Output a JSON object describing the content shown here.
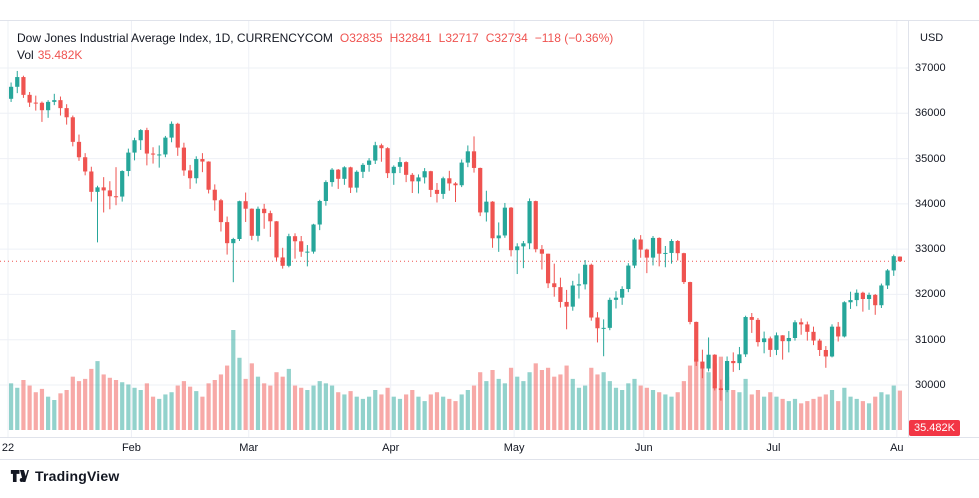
{
  "legend": {
    "title": "Dow Jones Industrial Average Index, 1D, CURRENCYCOM",
    "open": "O32835",
    "high": "H32841",
    "low": "L32717",
    "close": "C32734",
    "change": "−118 (−0.36%)"
  },
  "volume_row": {
    "label": "Vol",
    "value": "35.482K"
  },
  "axis": {
    "currency": "USD",
    "volume_badge": "35.482K"
  },
  "footer": {
    "brand": "TradingView"
  },
  "colors": {
    "up": "#26a69a",
    "down": "#ef5350",
    "volume_up": "rgba(38,166,154,0.5)",
    "volume_down": "rgba(239,83,80,0.5)",
    "grid": "#eef0f6",
    "last_price_line": "#ef5350",
    "badge_bg": "#f23645"
  },
  "chart_data": {
    "type": "candlestick",
    "title": "Dow Jones Industrial Average Index",
    "interval": "1D",
    "exchange": "CURRENCYCOM",
    "currency": "USD",
    "legend_position": "top-left",
    "grid": true,
    "ylim": [
      29500,
      37400
    ],
    "y_axis_ticks": [
      37000,
      36000,
      35000,
      34000,
      33000,
      32000,
      31000,
      30000
    ],
    "x_axis_ticks": [
      {
        "label": "22",
        "index": 0
      },
      {
        "label": "Feb",
        "index": 20
      },
      {
        "label": "Mar",
        "index": 39
      },
      {
        "label": "Apr",
        "index": 62
      },
      {
        "label": "May",
        "index": 82
      },
      {
        "label": "Jun",
        "index": 103
      },
      {
        "label": "Jul",
        "index": 124
      },
      {
        "label": "Au",
        "index": 144
      }
    ],
    "last": {
      "open": 32835,
      "high": 32841,
      "low": 32717,
      "close": 32734,
      "change": -118,
      "change_pct": -0.36,
      "volume_k": 35.482
    },
    "volume_unit": "K",
    "candles_format": [
      "open",
      "high",
      "low",
      "close",
      "volume_k"
    ],
    "candles": [
      [
        36320,
        36680,
        36250,
        36585,
        42
      ],
      [
        36585,
        36935,
        36445,
        36800,
        38
      ],
      [
        36800,
        36830,
        36340,
        36407,
        45
      ],
      [
        36407,
        36470,
        36140,
        36236,
        40
      ],
      [
        36236,
        36390,
        36060,
        36232,
        34
      ],
      [
        36232,
        36260,
        35810,
        36068,
        37
      ],
      [
        36068,
        36290,
        35900,
        36252,
        30
      ],
      [
        36252,
        36430,
        36180,
        36290,
        27
      ],
      [
        36290,
        36370,
        35950,
        36114,
        33
      ],
      [
        36114,
        36200,
        35750,
        35912,
        36
      ],
      [
        35912,
        35950,
        35270,
        35369,
        48
      ],
      [
        35369,
        35530,
        34950,
        35029,
        44
      ],
      [
        35029,
        35120,
        34630,
        34715,
        46
      ],
      [
        34715,
        34820,
        34050,
        34265,
        55
      ],
      [
        34265,
        34400,
        33150,
        34364,
        62
      ],
      [
        34364,
        34590,
        33810,
        34297,
        50
      ],
      [
        34297,
        34500,
        33880,
        34168,
        47
      ],
      [
        34168,
        34810,
        33970,
        34161,
        45
      ],
      [
        34161,
        34740,
        34050,
        34725,
        43
      ],
      [
        34725,
        35220,
        34610,
        35132,
        41
      ],
      [
        35132,
        35460,
        34960,
        35405,
        38
      ],
      [
        35405,
        35650,
        35190,
        35629,
        36
      ],
      [
        35629,
        35680,
        34850,
        35111,
        42
      ],
      [
        35111,
        35250,
        34890,
        35090,
        30
      ],
      [
        35090,
        35290,
        34800,
        35091,
        28
      ],
      [
        35091,
        35500,
        35030,
        35463,
        32
      ],
      [
        35463,
        35820,
        35360,
        35768,
        34
      ],
      [
        35768,
        35790,
        35060,
        35242,
        40
      ],
      [
        35242,
        35350,
        34620,
        34738,
        44
      ],
      [
        34738,
        34860,
        34330,
        34566,
        39
      ],
      [
        34566,
        35050,
        34450,
        34989,
        35
      ],
      [
        34989,
        35120,
        34700,
        34934,
        30
      ],
      [
        34934,
        34940,
        34230,
        34312,
        42
      ],
      [
        34312,
        34430,
        33850,
        34079,
        45
      ],
      [
        34079,
        34110,
        33390,
        33597,
        50
      ],
      [
        33597,
        33720,
        32880,
        33132,
        58
      ],
      [
        33132,
        33250,
        32270,
        33224,
        90
      ],
      [
        33224,
        34070,
        33180,
        34059,
        65
      ],
      [
        34059,
        34250,
        33600,
        33893,
        46
      ],
      [
        33893,
        33900,
        33200,
        33295,
        60
      ],
      [
        33295,
        33940,
        33170,
        33891,
        48
      ],
      [
        33891,
        34000,
        33450,
        33795,
        42
      ],
      [
        33795,
        33850,
        33270,
        33615,
        40
      ],
      [
        33615,
        33620,
        32740,
        32817,
        52
      ],
      [
        32817,
        33030,
        32570,
        32632,
        48
      ],
      [
        32632,
        33340,
        32600,
        33286,
        55
      ],
      [
        33286,
        33350,
        32790,
        33174,
        40
      ],
      [
        33174,
        33290,
        32830,
        32944,
        38
      ],
      [
        32944,
        33090,
        32620,
        32945,
        36
      ],
      [
        32945,
        33560,
        32900,
        33544,
        40
      ],
      [
        33544,
        34090,
        33420,
        34063,
        44
      ],
      [
        34063,
        34520,
        33960,
        34481,
        42
      ],
      [
        34481,
        34790,
        34380,
        34755,
        40
      ],
      [
        34755,
        34770,
        34330,
        34553,
        34
      ],
      [
        34553,
        34830,
        34420,
        34807,
        32
      ],
      [
        34807,
        34820,
        34240,
        34358,
        35
      ],
      [
        34358,
        34740,
        34250,
        34708,
        30
      ],
      [
        34708,
        34900,
        34570,
        34861,
        28
      ],
      [
        34861,
        35010,
        34710,
        34956,
        30
      ],
      [
        34956,
        35370,
        34880,
        35294,
        36
      ],
      [
        35294,
        35330,
        34930,
        35229,
        32
      ],
      [
        35229,
        35250,
        34570,
        34678,
        38
      ],
      [
        34678,
        34850,
        34420,
        34818,
        30
      ],
      [
        34818,
        35030,
        34680,
        34922,
        28
      ],
      [
        34922,
        34940,
        34480,
        34641,
        32
      ],
      [
        34641,
        34680,
        34240,
        34497,
        36
      ],
      [
        34497,
        34650,
        34230,
        34584,
        30
      ],
      [
        34584,
        34790,
        34450,
        34721,
        26
      ],
      [
        34721,
        34730,
        34150,
        34308,
        32
      ],
      [
        34308,
        34460,
        34030,
        34220,
        34
      ],
      [
        34220,
        34600,
        34110,
        34565,
        30
      ],
      [
        34565,
        34730,
        34290,
        34451,
        28
      ],
      [
        34451,
        34480,
        34040,
        34411,
        26
      ],
      [
        34411,
        34980,
        34370,
        34911,
        32
      ],
      [
        34911,
        35290,
        34810,
        35160,
        36
      ],
      [
        35160,
        35490,
        34690,
        34793,
        40
      ],
      [
        34793,
        34800,
        33730,
        33811,
        52
      ],
      [
        33811,
        34290,
        33610,
        34049,
        44
      ],
      [
        34049,
        34060,
        33030,
        33240,
        54
      ],
      [
        33240,
        33590,
        32940,
        33302,
        46
      ],
      [
        33302,
        34020,
        33250,
        33916,
        42
      ],
      [
        33916,
        33930,
        32840,
        32977,
        56
      ],
      [
        32977,
        33130,
        32450,
        33061,
        48
      ],
      [
        33061,
        33180,
        32580,
        33129,
        44
      ],
      [
        33129,
        34120,
        33000,
        34061,
        52
      ],
      [
        34061,
        34070,
        32930,
        32998,
        60
      ],
      [
        32998,
        33090,
        32550,
        32899,
        54
      ],
      [
        32899,
        32900,
        32140,
        32246,
        56
      ],
      [
        32246,
        32680,
        31950,
        32161,
        48
      ],
      [
        32161,
        32370,
        31710,
        31834,
        50
      ],
      [
        31834,
        32100,
        31230,
        31730,
        58
      ],
      [
        31730,
        32300,
        31640,
        32197,
        46
      ],
      [
        32197,
        32460,
        31910,
        32223,
        38
      ],
      [
        32223,
        32760,
        32110,
        32655,
        40
      ],
      [
        32655,
        32680,
        31420,
        31490,
        56
      ],
      [
        31490,
        31610,
        30940,
        31253,
        50
      ],
      [
        31253,
        31450,
        30635,
        31262,
        52
      ],
      [
        31262,
        31930,
        31210,
        31880,
        44
      ],
      [
        31880,
        32070,
        31690,
        31929,
        38
      ],
      [
        31929,
        32180,
        31770,
        32120,
        36
      ],
      [
        32120,
        32690,
        32050,
        32637,
        42
      ],
      [
        32637,
        33250,
        32580,
        33213,
        46
      ],
      [
        33213,
        33310,
        32810,
        32990,
        40
      ],
      [
        32990,
        33010,
        32470,
        32813,
        38
      ],
      [
        32813,
        33290,
        32640,
        33248,
        36
      ],
      [
        33248,
        33260,
        32620,
        32900,
        34
      ],
      [
        32900,
        33070,
        32600,
        32916,
        32
      ],
      [
        32916,
        33220,
        32680,
        33180,
        30
      ],
      [
        33180,
        33200,
        32750,
        32911,
        34
      ],
      [
        32911,
        32920,
        32230,
        32273,
        44
      ],
      [
        32273,
        32280,
        31340,
        31393,
        58
      ],
      [
        31393,
        31400,
        30420,
        30517,
        64
      ],
      [
        30517,
        30780,
        30150,
        30364,
        56
      ],
      [
        30364,
        31050,
        30300,
        30669,
        52
      ],
      [
        30669,
        30680,
        29880,
        29927,
        60
      ],
      [
        29927,
        30120,
        29654,
        29889,
        66
      ],
      [
        29889,
        30630,
        29840,
        30530,
        48
      ],
      [
        30530,
        30720,
        30290,
        30483,
        36
      ],
      [
        30483,
        30840,
        30330,
        30677,
        34
      ],
      [
        30677,
        31530,
        30620,
        31501,
        46
      ],
      [
        31501,
        31590,
        31150,
        31438,
        32
      ],
      [
        31438,
        31480,
        30850,
        30947,
        36
      ],
      [
        30947,
        31180,
        30700,
        31029,
        30
      ],
      [
        31029,
        31070,
        30620,
        30775,
        34
      ],
      [
        30775,
        31160,
        30660,
        31097,
        30
      ],
      [
        31097,
        31100,
        30560,
        30968,
        28
      ],
      [
        30968,
        31190,
        30720,
        31038,
        26
      ],
      [
        31038,
        31430,
        30980,
        31385,
        28
      ],
      [
        31385,
        31470,
        31110,
        31338,
        24
      ],
      [
        31338,
        31400,
        30980,
        31174,
        26
      ],
      [
        31174,
        31290,
        30880,
        30981,
        28
      ],
      [
        30981,
        31020,
        30640,
        30773,
        30
      ],
      [
        30773,
        30860,
        30380,
        30630,
        32
      ],
      [
        30630,
        31340,
        30610,
        31288,
        36
      ],
      [
        31288,
        31390,
        30960,
        31072,
        26
      ],
      [
        31072,
        31850,
        31050,
        31827,
        38
      ],
      [
        31827,
        32060,
        31680,
        31875,
        30
      ],
      [
        31875,
        32110,
        31740,
        32037,
        28
      ],
      [
        32037,
        32060,
        31620,
        31899,
        26
      ],
      [
        31899,
        32040,
        31660,
        31990,
        24
      ],
      [
        31990,
        32010,
        31550,
        31762,
        30
      ],
      [
        31762,
        32240,
        31700,
        32198,
        34
      ],
      [
        32198,
        32560,
        32120,
        32530,
        32
      ],
      [
        32530,
        32880,
        32410,
        32845,
        40
      ],
      [
        32835,
        32841,
        32717,
        32734,
        35.482
      ]
    ]
  }
}
